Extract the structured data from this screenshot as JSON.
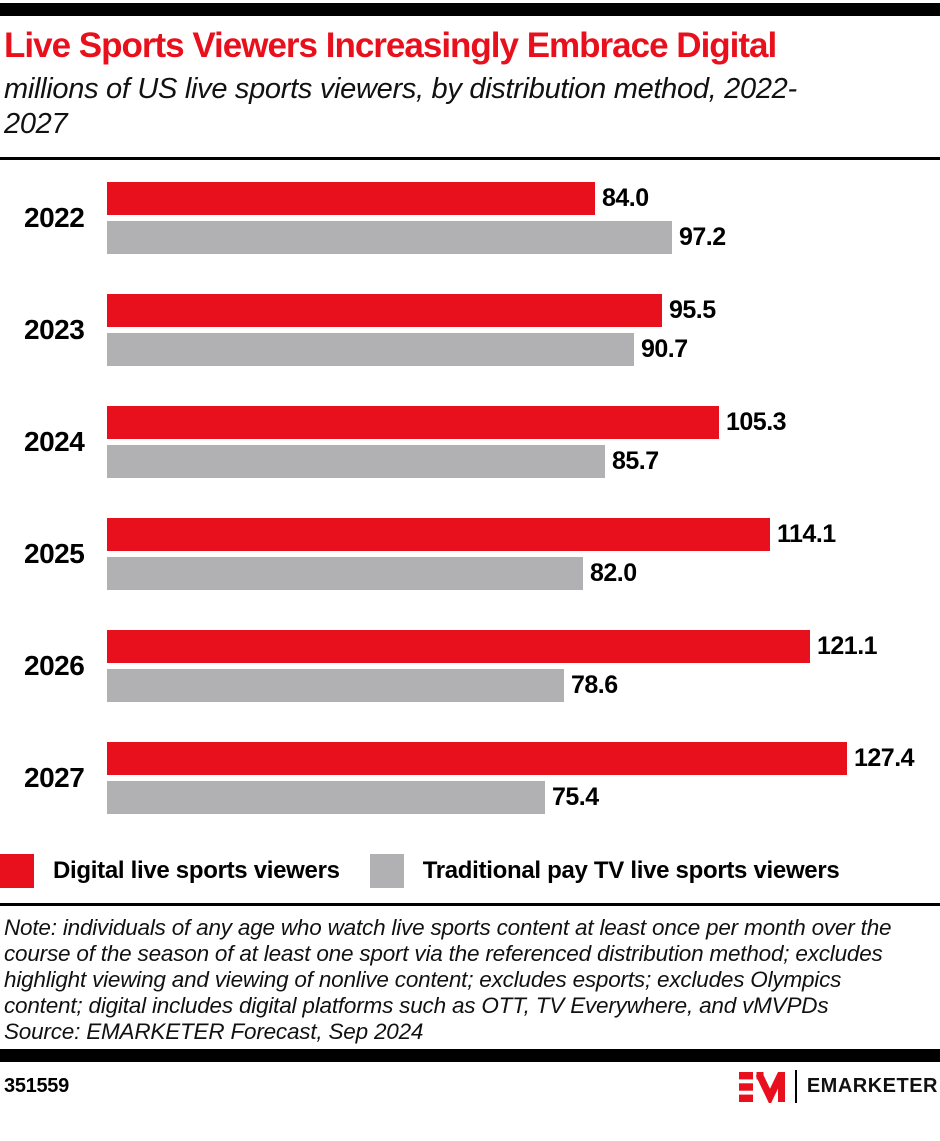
{
  "header": {
    "title": "Live Sports Viewers Increasingly Embrace Digital",
    "subtitle": "millions of US live sports viewers, by distribution method, 2022-2027"
  },
  "chart_data": {
    "type": "bar",
    "orientation": "horizontal",
    "unit": "millions of viewers",
    "title": "Live Sports Viewers Increasingly Embrace Digital",
    "subtitle": "millions of US live sports viewers, by distribution method, 2022-2027",
    "categories": [
      "2022",
      "2023",
      "2024",
      "2025",
      "2026",
      "2027"
    ],
    "series": [
      {
        "name": "Digital live sports viewers",
        "color": "#e8101c",
        "values": [
          84.0,
          95.5,
          105.3,
          114.1,
          121.1,
          127.4
        ]
      },
      {
        "name": "Traditional pay TV live sports viewers",
        "color": "#b1b1b3",
        "values": [
          97.2,
          90.7,
          85.7,
          82.0,
          78.6,
          75.4
        ]
      }
    ],
    "value_labels": "end_of_bar_one_decimal",
    "xlim": [
      0,
      130
    ],
    "grid": false,
    "legend_position": "bottom"
  },
  "note": "Note: individuals of any age who watch live sports content at least once per month over the course of the season of at least one sport via the referenced distribution method; excludes highlight viewing and viewing of nonlive content; excludes esports; excludes Olympics content; digital includes digital platforms such as OTT, TV Everywhere, and vMVPDs",
  "source": "Source: EMARKETER Forecast, Sep 2024",
  "footer": {
    "chart_id": "351559",
    "brand": "EMARKETER"
  },
  "colors": {
    "accent_red": "#e8101c",
    "bar_gray": "#b1b1b3",
    "bar_black": "#000000"
  }
}
